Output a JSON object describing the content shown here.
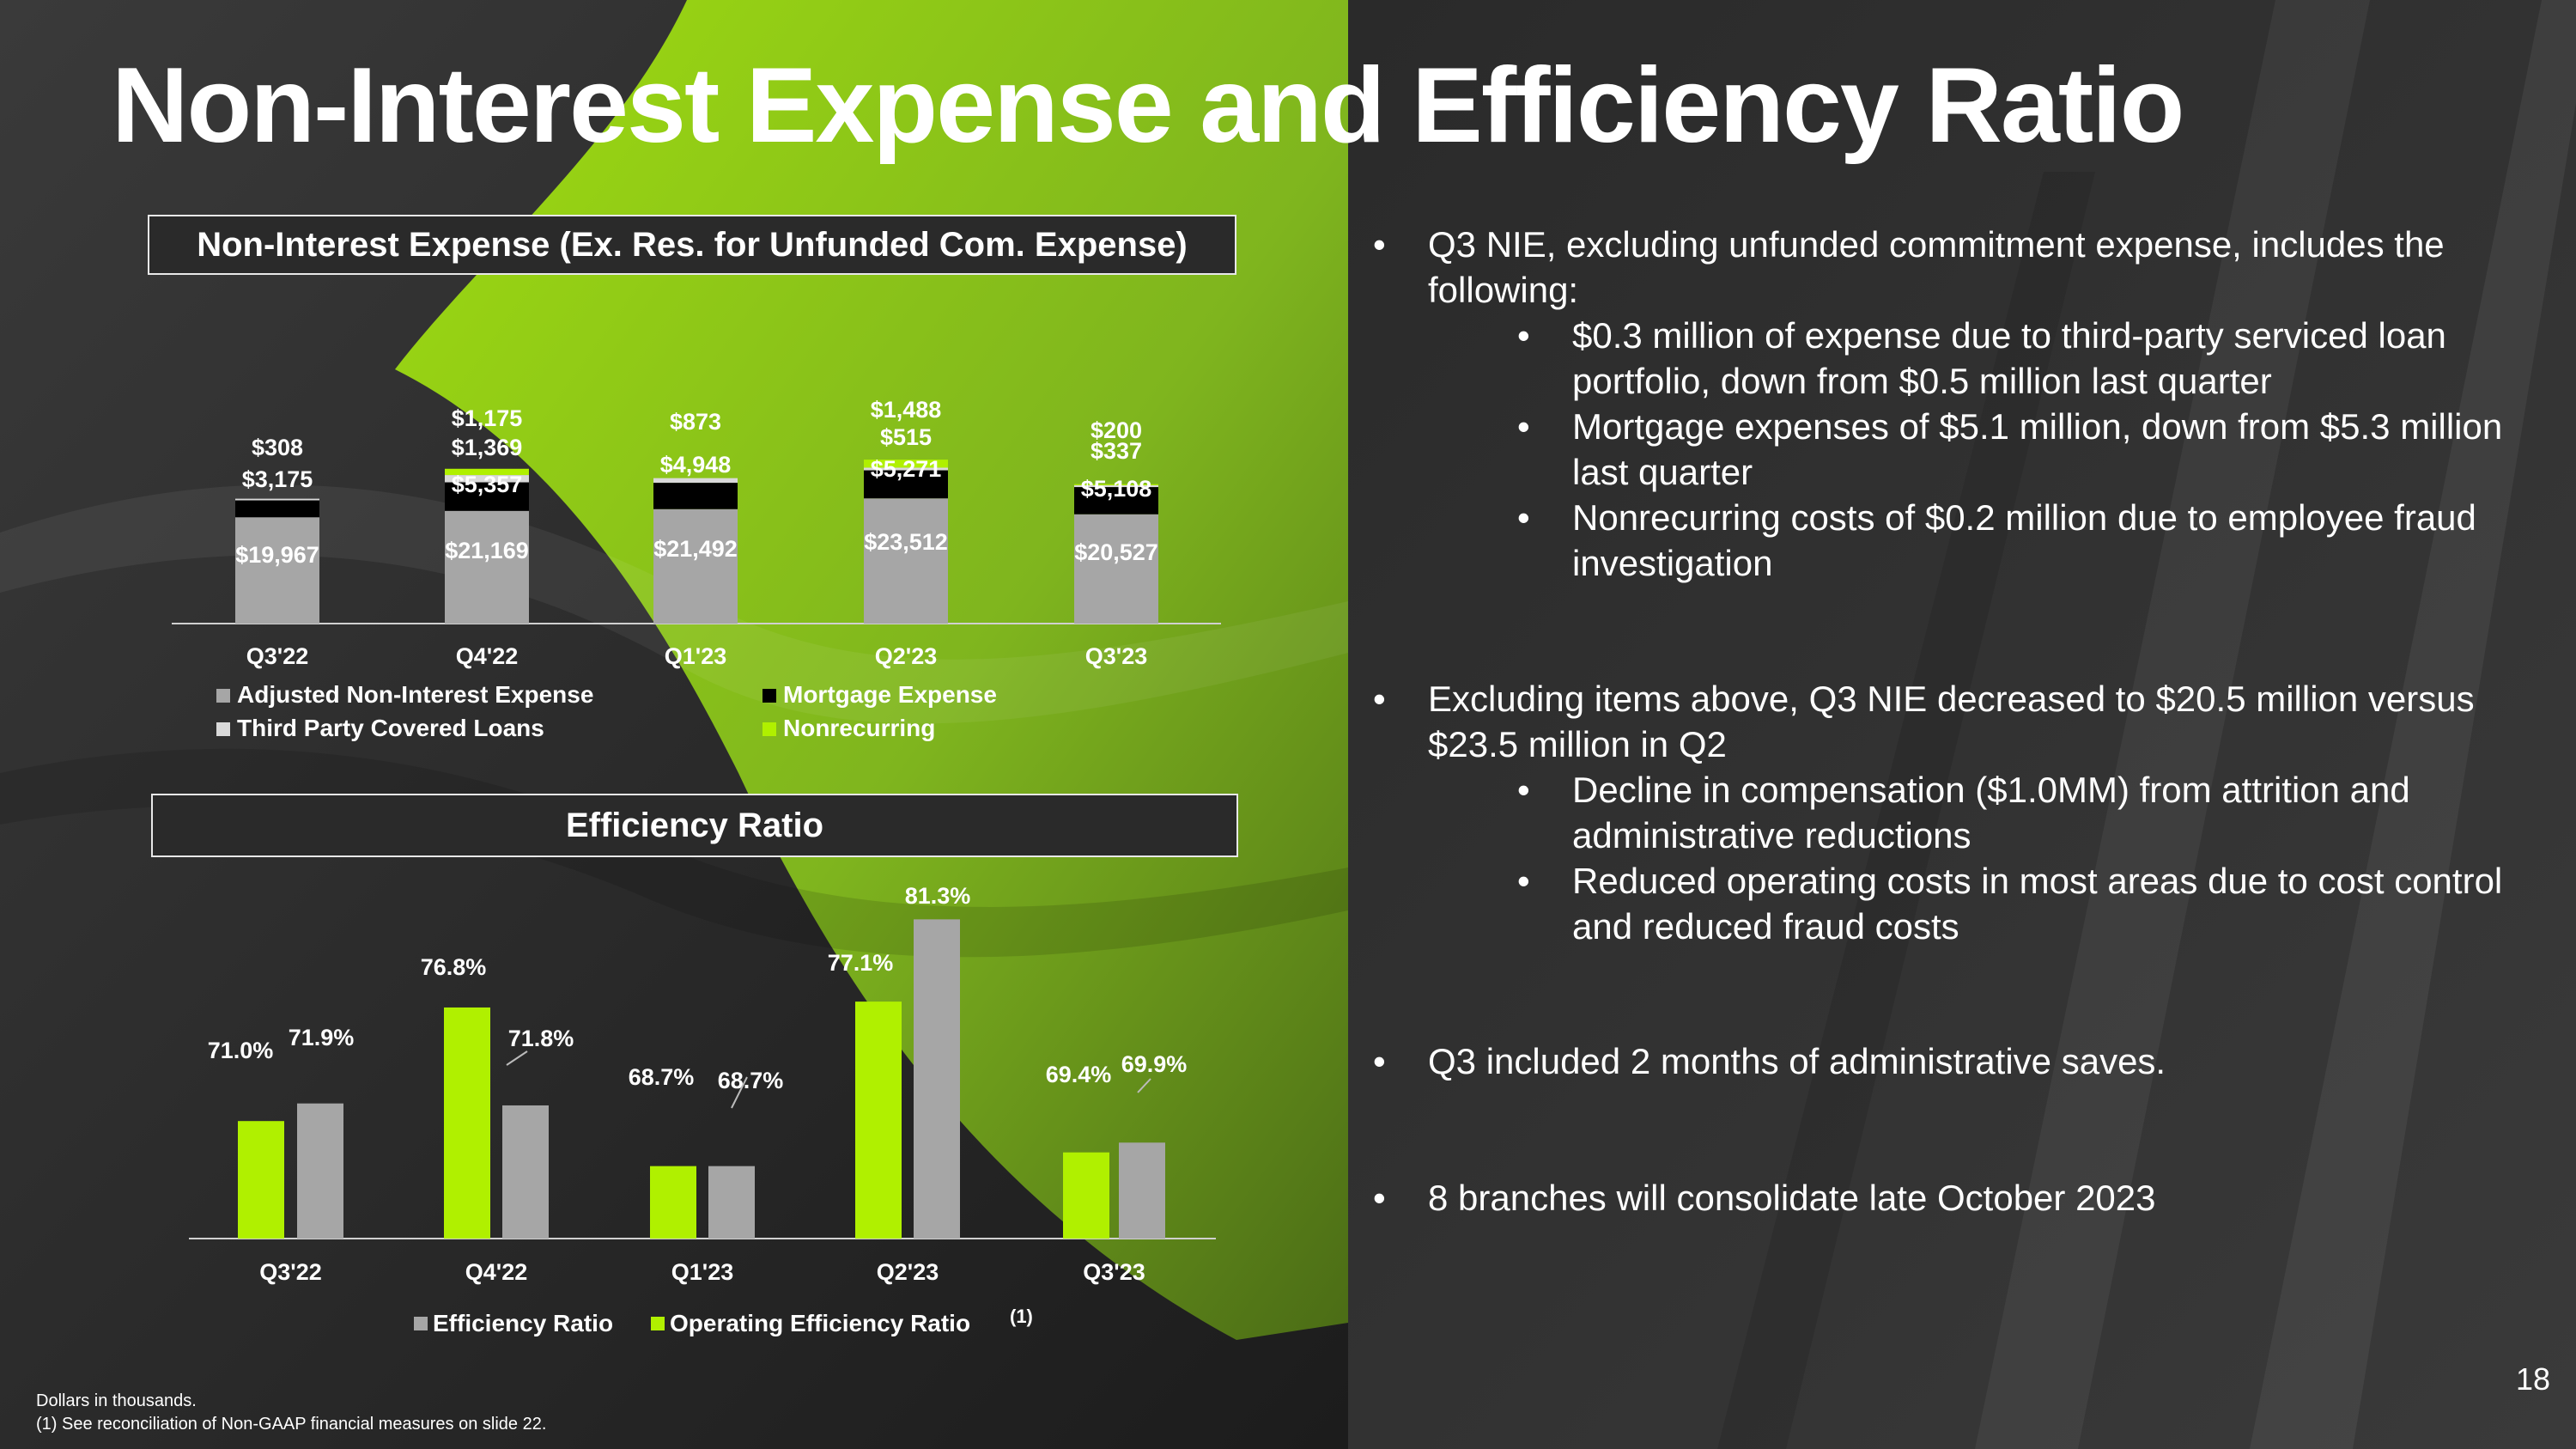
{
  "slide": {
    "title": "Non-Interest Expense and Efficiency Ratio",
    "page_number": "18",
    "footnotes": [
      "Dollars in thousands.",
      "(1) See reconciliation of Non-GAAP financial measures on slide 22."
    ],
    "colors": {
      "accent_green": "#b0f000",
      "gray": "#a6a6a6",
      "black": "#000000",
      "light_gray": "#d9d9d9",
      "background_dark": "#2b2b2b"
    }
  },
  "bullets": [
    {
      "text": "Q3 NIE, excluding unfunded commitment expense, includes the following:",
      "sub": [
        "$0.3 million of expense due to third-party serviced loan portfolio, down from $0.5 million last quarter",
        "Mortgage expenses of $5.1 million, down from $5.3 million last quarter",
        "Nonrecurring costs of $0.2 million due to employee fraud investigation"
      ]
    },
    {
      "text": "Excluding items above, Q3 NIE decreased to $20.5 million versus $23.5 million in Q2",
      "sub": [
        "Decline in compensation ($1.0MM) from attrition and administrative reductions",
        "Reduced operating costs in most areas due to cost control and reduced fraud costs"
      ]
    },
    {
      "text": "Q3 included 2 months of administrative saves.",
      "sub": []
    },
    {
      "text": "8 branches will consolidate late October 2023",
      "sub": []
    }
  ],
  "chart_data": [
    {
      "type": "bar",
      "stacked": true,
      "title": "Non-Interest Expense (Ex. Res. for Unfunded Com. Expense)",
      "categories": [
        "Q3'22",
        "Q4'22",
        "Q1'23",
        "Q2'23",
        "Q3'23"
      ],
      "series": [
        {
          "name": "Adjusted Non-Interest Expense",
          "color": "#a6a6a6",
          "values": [
            19967,
            21169,
            21492,
            23512,
            20527
          ],
          "labels": [
            "$19,967",
            "$21,169",
            "$21,492",
            "$23,512",
            "$20,527"
          ]
        },
        {
          "name": "Mortgage Expense",
          "color": "#000000",
          "values": [
            3175,
            5357,
            4948,
            5271,
            5108
          ],
          "labels": [
            "$3,175",
            "$5,357",
            "$4,948",
            "$5,271",
            "$5,108"
          ]
        },
        {
          "name": "Third Party Covered Loans",
          "color": "#d9d9d9",
          "values": [
            308,
            1369,
            873,
            515,
            337
          ],
          "labels": [
            "$308",
            "$1,369",
            "$873",
            "$515",
            "$337"
          ]
        },
        {
          "name": "Nonrecurring",
          "color": "#b0f000",
          "values": [
            0,
            1175,
            0,
            1488,
            200
          ],
          "labels": [
            "",
            "$1,175",
            "",
            "$1,488",
            "$200"
          ]
        }
      ],
      "legend_position": "bottom",
      "grid": false
    },
    {
      "type": "bar",
      "title": "Efficiency Ratio",
      "categories": [
        "Q3'22",
        "Q4'22",
        "Q1'23",
        "Q2'23",
        "Q3'23"
      ],
      "series": [
        {
          "name": "Operating Efficiency Ratio",
          "color": "#b0f000",
          "values": [
            71.0,
            76.8,
            68.7,
            77.1,
            69.4
          ],
          "labels": [
            "71.0%",
            "76.8%",
            "68.7%",
            "77.1%",
            "69.4%"
          ]
        },
        {
          "name": "Efficiency Ratio",
          "color": "#a6a6a6",
          "values": [
            71.9,
            71.8,
            68.7,
            81.3,
            69.9
          ],
          "labels": [
            "71.9%",
            "71.8%",
            "68.7%",
            "81.3%",
            "69.9%"
          ]
        }
      ],
      "legend": [
        "Efficiency Ratio",
        "Operating Efficiency Ratio"
      ],
      "legend_footnote_marker": "(1)",
      "legend_position": "bottom",
      "grid": false
    }
  ]
}
